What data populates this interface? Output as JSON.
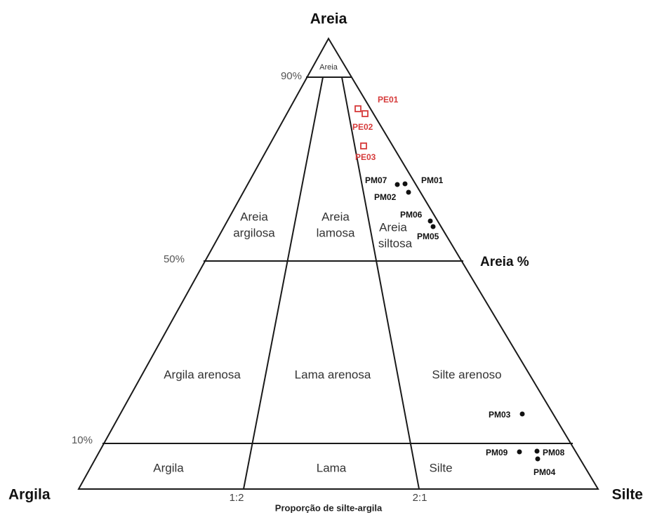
{
  "title": "Areia",
  "corners": {
    "left": "Argila",
    "right": "Silte"
  },
  "axis_label": "Areia %",
  "axis_caption": "Proporção de silte-argila",
  "percent_labels": [
    "90%",
    "50%",
    "10%"
  ],
  "ratio_labels": [
    "1:2",
    "2:1"
  ],
  "regions": [
    [
      "Areia"
    ],
    [
      "Areia",
      "argilosa"
    ],
    [
      "Areia",
      "lamosa"
    ],
    [
      "Areia",
      "siltosa"
    ],
    [
      "Argila arenosa"
    ],
    [
      "Lama arenosa"
    ],
    [
      "Silte arenoso"
    ],
    [
      "Argila"
    ],
    [
      "Lama"
    ],
    [
      "Silte"
    ]
  ],
  "samples": [
    "PE01",
    "PE02",
    "PE03",
    "PM07",
    "PM01",
    "PM02",
    "PM06",
    "PM05",
    "PM03",
    "PM09",
    "PM08",
    "PM04"
  ]
}
